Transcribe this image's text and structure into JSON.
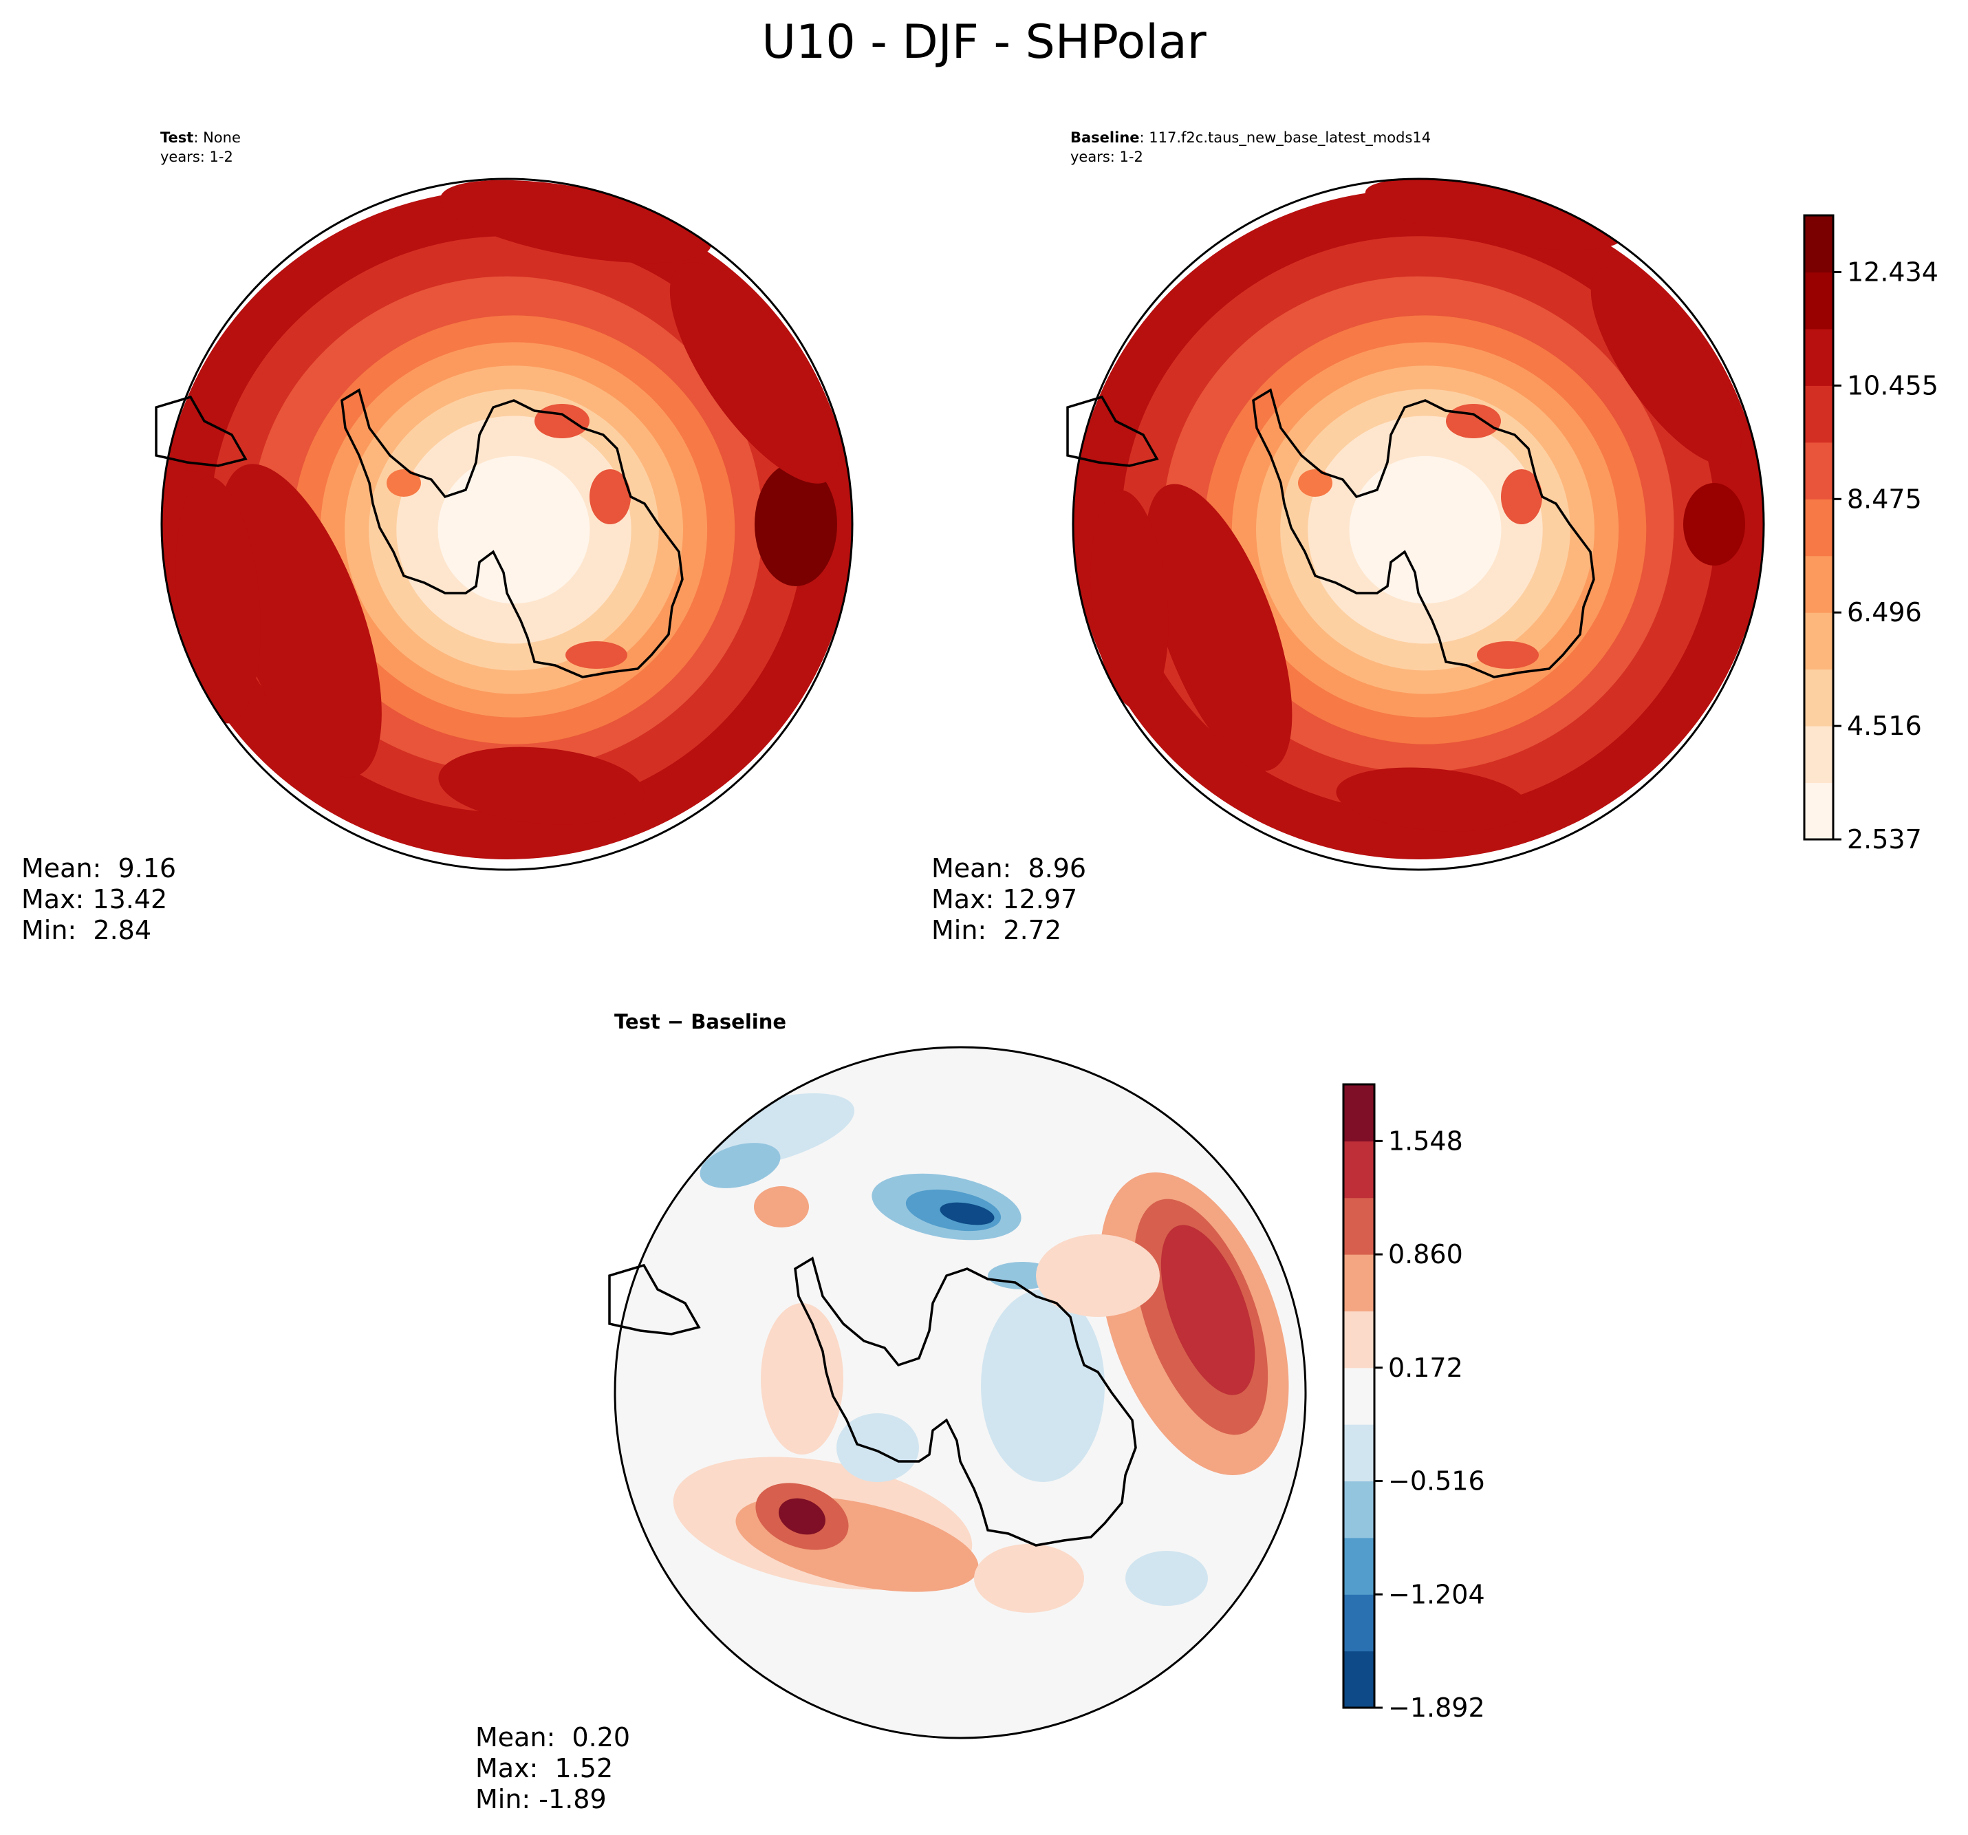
{
  "figure": {
    "title": "U10 - DJF - SHPolar"
  },
  "panels": {
    "test": {
      "label_bold": "Test",
      "label_rest": ": None",
      "years": "years: 1-2",
      "mean_label": "Mean:  9.16",
      "max_label": "Max: 13.42",
      "min_label": "Min:  2.84"
    },
    "baseline": {
      "label_bold": "Baseline",
      "label_rest": ": 117.f2c.taus_new_base_latest_mods14",
      "years": "years: 1-2",
      "mean_label": "Mean:  8.96",
      "max_label": "Max: 12.97",
      "min_label": "Min:  2.72"
    },
    "diff": {
      "title": "Test − Baseline",
      "mean_label": "Mean:  0.20",
      "max_label": "Max:  1.52",
      "min_label": "Min: -1.89"
    }
  },
  "chart_data": [
    {
      "type": "heatmap",
      "panel": "test",
      "projection": "south polar stereographic",
      "variable": "U10",
      "season": "DJF",
      "stats": {
        "mean": 9.16,
        "max": 13.42,
        "min": 2.84
      },
      "colorbar_levels": [
        2.537,
        3.527,
        4.516,
        5.506,
        6.496,
        7.485,
        8.475,
        9.465,
        10.455,
        11.444,
        12.434,
        13.424
      ],
      "colorbar_ticks": [
        "2.537",
        "4.516",
        "6.496",
        "8.475",
        "10.455",
        "12.434"
      ],
      "colormap": [
        "#fff5eb",
        "#fee6ce",
        "#fdd0a2",
        "#fdb77c",
        "#fc9a5d",
        "#f77945",
        "#e8553a",
        "#d42f23",
        "#b80f0f",
        "#990000",
        "#7a0000"
      ]
    },
    {
      "type": "heatmap",
      "panel": "baseline",
      "projection": "south polar stereographic",
      "variable": "U10",
      "season": "DJF",
      "stats": {
        "mean": 8.96,
        "max": 12.97,
        "min": 2.72
      },
      "colorbar_levels": [
        2.537,
        3.527,
        4.516,
        5.506,
        6.496,
        7.485,
        8.475,
        9.465,
        10.455,
        11.444,
        12.434,
        13.424
      ],
      "colorbar_ticks": [
        "2.537",
        "4.516",
        "6.496",
        "8.475",
        "10.455",
        "12.434"
      ],
      "colormap": [
        "#fff5eb",
        "#fee6ce",
        "#fdd0a2",
        "#fdb77c",
        "#fc9a5d",
        "#f77945",
        "#e8553a",
        "#d42f23",
        "#b80f0f",
        "#990000",
        "#7a0000"
      ]
    },
    {
      "type": "heatmap",
      "panel": "diff",
      "projection": "south polar stereographic",
      "title": "Test − Baseline",
      "stats": {
        "mean": 0.2,
        "max": 1.52,
        "min": -1.89
      },
      "colorbar_levels": [
        -1.892,
        -1.548,
        -1.204,
        -0.86,
        -0.516,
        -0.172,
        0.172,
        0.516,
        0.86,
        1.204,
        1.548,
        1.892
      ],
      "colorbar_ticks": [
        "−1.892",
        "−1.204",
        "−0.516",
        "0.172",
        "0.860",
        "1.548"
      ],
      "colormap": [
        "#0d4a87",
        "#2a71b2",
        "#529dcb",
        "#94c5df",
        "#d1e5f0",
        "#f6f6f6",
        "#fbdac9",
        "#f4a582",
        "#d6604d",
        "#be2f37",
        "#7f0f26"
      ]
    }
  ]
}
